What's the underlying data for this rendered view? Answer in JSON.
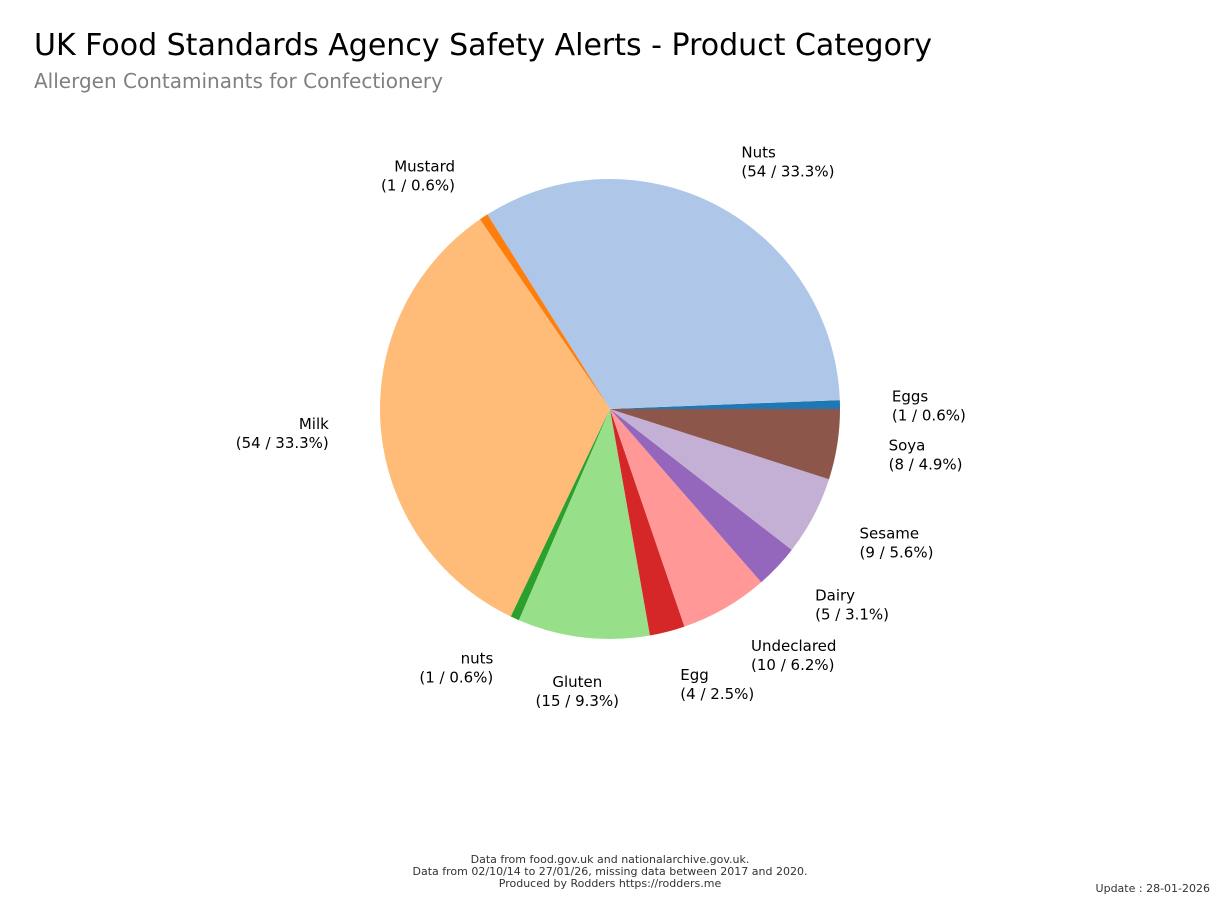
{
  "title": "UK Food Standards Agency Safety Alerts - Product Category",
  "subtitle": "Allergen Contaminants for Confectionery",
  "footer": {
    "line1": "Data from food.gov.uk and nationalarchive.gov.uk.",
    "line2": "Data from 02/10/14 to 27/01/26, missing data between 2017 and 2020.",
    "line3": "Produced by Rodders https://rodders.me"
  },
  "update": "Update : 28-01-2026",
  "chart_data": {
    "type": "pie",
    "slices": [
      {
        "name": "Eggs",
        "value": 1,
        "percent": "0.6%",
        "label": "(1 / 0.6%)",
        "color": "#1f77b4"
      },
      {
        "name": "Nuts",
        "value": 54,
        "percent": "33.3%",
        "label": "(54 / 33.3%)",
        "color": "#aec7e8"
      },
      {
        "name": "Mustard",
        "value": 1,
        "percent": "0.6%",
        "label": "(1 / 0.6%)",
        "color": "#ff7f0e"
      },
      {
        "name": "Milk",
        "value": 54,
        "percent": "33.3%",
        "label": "(54 / 33.3%)",
        "color": "#ffbb78"
      },
      {
        "name": "nuts",
        "value": 1,
        "percent": "0.6%",
        "label": "(1 / 0.6%)",
        "color": "#2ca02c"
      },
      {
        "name": "Gluten",
        "value": 15,
        "percent": "9.3%",
        "label": "(15 / 9.3%)",
        "color": "#98df8a"
      },
      {
        "name": "Egg",
        "value": 4,
        "percent": "2.5%",
        "label": "(4 / 2.5%)",
        "color": "#d62728"
      },
      {
        "name": "Undeclared",
        "value": 10,
        "percent": "6.2%",
        "label": "(10 / 6.2%)",
        "color": "#ff9896"
      },
      {
        "name": "Dairy",
        "value": 5,
        "percent": "3.1%",
        "label": "(5 / 3.1%)",
        "color": "#9467bd"
      },
      {
        "name": "Sesame",
        "value": 9,
        "percent": "5.6%",
        "label": "(9 / 5.6%)",
        "color": "#c5b0d5"
      },
      {
        "name": "Soya",
        "value": 8,
        "percent": "4.9%",
        "label": "(8 / 4.9%)",
        "color": "#8c564b"
      }
    ],
    "start_angle": "3 o'clock",
    "direction": "counterclockwise"
  }
}
